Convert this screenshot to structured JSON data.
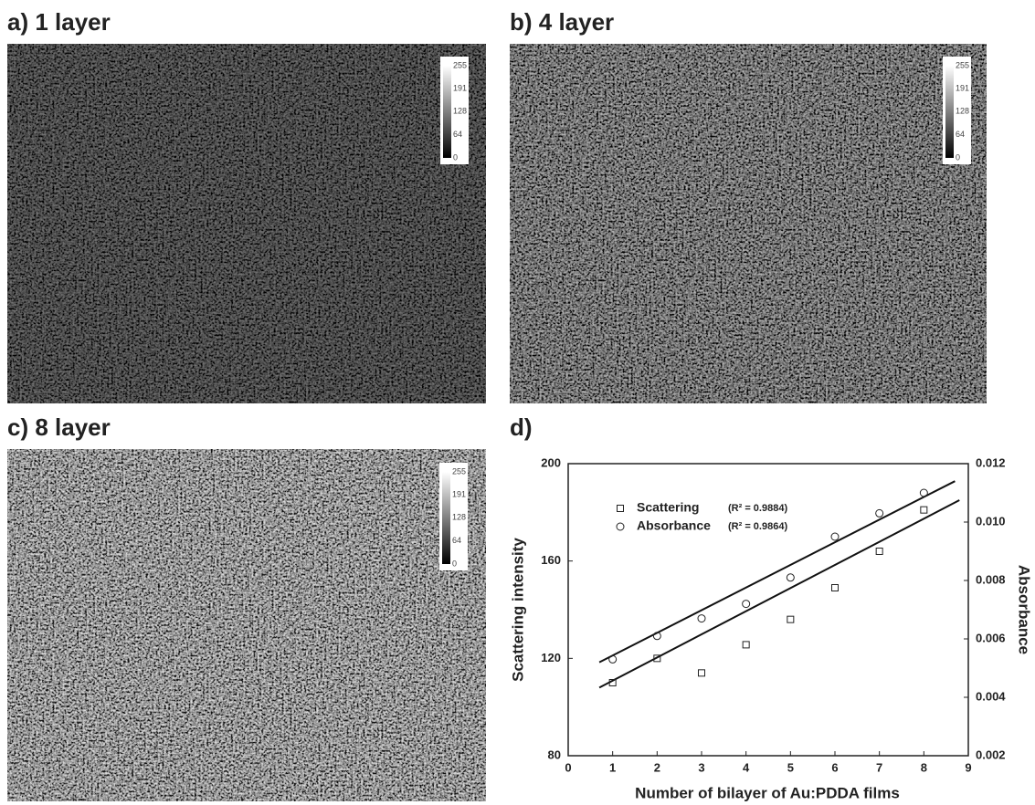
{
  "panels": [
    {
      "label": "a) 1 layer"
    },
    {
      "label": "b) 4 layer"
    },
    {
      "label": "c) 8 layer"
    }
  ],
  "colorbar_ticks": [
    0,
    64,
    128,
    191,
    255
  ],
  "chart_data": {
    "type": "scatter",
    "title": "d)",
    "x_label": "Number of bilayer of Au:PDDA films",
    "y_label": "Scattering intensity",
    "y2_label": "Absorbance",
    "xlim": [
      0,
      9
    ],
    "xticks": [
      0,
      1,
      2,
      3,
      4,
      5,
      6,
      7,
      8,
      9
    ],
    "ylim": [
      80,
      200
    ],
    "yticks": [
      80,
      120,
      160,
      200
    ],
    "y2lim": [
      0.002,
      0.012
    ],
    "y2ticks": [
      0.002,
      0.004,
      0.006,
      0.008,
      {
        "value": 0.01,
        "label": "0.010"
      },
      0.012
    ],
    "x": [
      1,
      2,
      3,
      4,
      5,
      6,
      7,
      8
    ],
    "series": [
      {
        "name": "Scattering",
        "r2_label": "(R² = 0.9884)",
        "marker": "square",
        "color": "#222",
        "values": [
          110,
          120,
          114,
          125.6,
          136,
          149,
          164,
          181
        ],
        "fit": {
          "x": [
            0.7,
            8.8
          ],
          "values": [
            108,
            185
          ]
        }
      },
      {
        "name": "Absorbance",
        "r2_label": "(R² = 0.9864)",
        "marker": "circle",
        "color": "#222",
        "axis": "y2",
        "values": [
          0.0053,
          0.0061,
          0.0067,
          0.0072,
          0.0081,
          0.0095,
          0.0103,
          0.011
        ],
        "fit": {
          "x": [
            0.7,
            8.7
          ],
          "values": [
            0.0052,
            0.0114
          ]
        }
      }
    ]
  }
}
